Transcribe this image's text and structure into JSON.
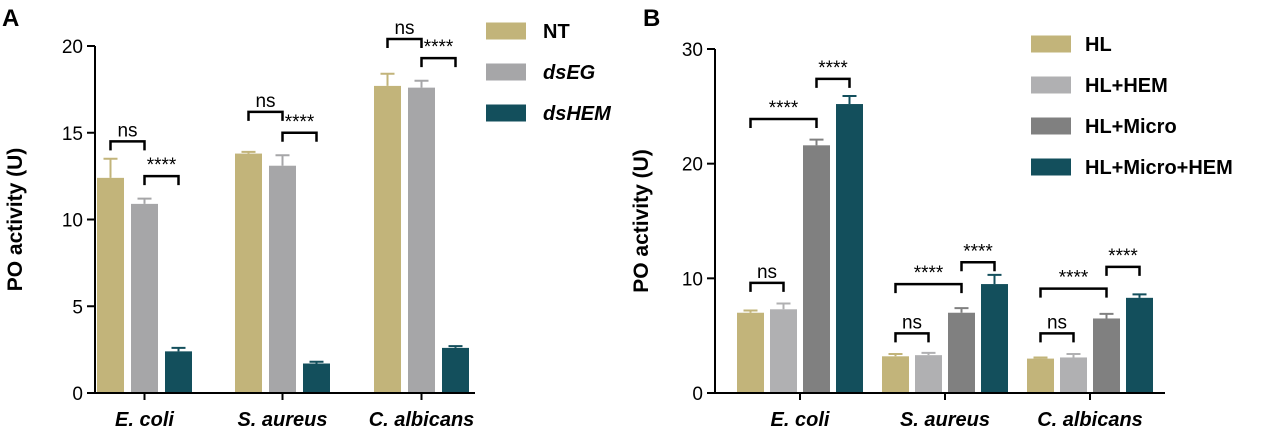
{
  "chart_data": [
    {
      "type": "bar",
      "panel_label": "A",
      "ylabel": "PO activity (U)",
      "ylim": [
        0,
        20
      ],
      "yticks": [
        0,
        5,
        10,
        15,
        20
      ],
      "categories": [
        "E. coli",
        "S. aureus",
        "C. albicans"
      ],
      "series": [
        {
          "name": "NT",
          "italic": false,
          "color": "#c2b47a",
          "values": [
            12.4,
            13.8,
            17.7
          ],
          "errors": [
            1.1,
            0.1,
            0.7
          ]
        },
        {
          "name": "dsEG",
          "italic": true,
          "color": "#a6a6a8",
          "values": [
            10.9,
            13.1,
            17.6
          ],
          "errors": [
            0.3,
            0.6,
            0.4
          ]
        },
        {
          "name": "dsHEM",
          "italic": true,
          "color": "#134f5c",
          "values": [
            2.4,
            1.7,
            2.6
          ],
          "errors": [
            0.2,
            0.1,
            0.1
          ]
        }
      ],
      "annotations": [
        {
          "category": 0,
          "from": 0,
          "to": 1,
          "y": 14.5,
          "text": "ns"
        },
        {
          "category": 0,
          "from": 1,
          "to": 2,
          "y": 12.5,
          "text": "****"
        },
        {
          "category": 1,
          "from": 0,
          "to": 1,
          "y": 16.2,
          "text": "ns"
        },
        {
          "category": 1,
          "from": 1,
          "to": 2,
          "y": 15.0,
          "text": "****"
        },
        {
          "category": 2,
          "from": 0,
          "to": 1,
          "y": 20.4,
          "text": "ns"
        },
        {
          "category": 2,
          "from": 1,
          "to": 2,
          "y": 19.3,
          "text": "****"
        }
      ]
    },
    {
      "type": "bar",
      "panel_label": "B",
      "ylabel": "PO activity (U)",
      "ylim": [
        0,
        30
      ],
      "yticks": [
        0,
        10,
        20,
        30
      ],
      "categories": [
        "E. coli",
        "S. aureus",
        "C. albicans"
      ],
      "series": [
        {
          "name": "HL",
          "italic": false,
          "color": "#c2b47a",
          "values": [
            7.0,
            3.2,
            3.0
          ],
          "errors": [
            0.2,
            0.2,
            0.1
          ]
        },
        {
          "name": "HL+HEM",
          "italic": false,
          "color": "#b0b0b2",
          "values": [
            7.3,
            3.3,
            3.1
          ],
          "errors": [
            0.5,
            0.2,
            0.3
          ]
        },
        {
          "name": "HL+Micro",
          "italic": false,
          "color": "#808080",
          "values": [
            21.6,
            7.0,
            6.5
          ],
          "errors": [
            0.5,
            0.4,
            0.4
          ]
        },
        {
          "name": "HL+Micro+HEM",
          "italic": false,
          "color": "#134f5c",
          "values": [
            25.2,
            9.5,
            8.3
          ],
          "errors": [
            0.7,
            0.8,
            0.3
          ]
        }
      ],
      "annotations": [
        {
          "category": 0,
          "from": 0,
          "to": 1,
          "y": 9.6,
          "text": "ns"
        },
        {
          "category": 0,
          "from": 0,
          "to": 2,
          "y": 23.9,
          "text": "****"
        },
        {
          "category": 0,
          "from": 2,
          "to": 3,
          "y": 27.4,
          "text": "****"
        },
        {
          "category": 1,
          "from": 0,
          "to": 1,
          "y": 5.2,
          "text": "ns"
        },
        {
          "category": 1,
          "from": 0,
          "to": 2,
          "y": 9.5,
          "text": "****"
        },
        {
          "category": 1,
          "from": 2,
          "to": 3,
          "y": 11.4,
          "text": "****"
        },
        {
          "category": 2,
          "from": 0,
          "to": 1,
          "y": 5.2,
          "text": "ns"
        },
        {
          "category": 2,
          "from": 0,
          "to": 2,
          "y": 9.1,
          "text": "****"
        },
        {
          "category": 2,
          "from": 2,
          "to": 3,
          "y": 11.0,
          "text": "****"
        }
      ]
    }
  ]
}
